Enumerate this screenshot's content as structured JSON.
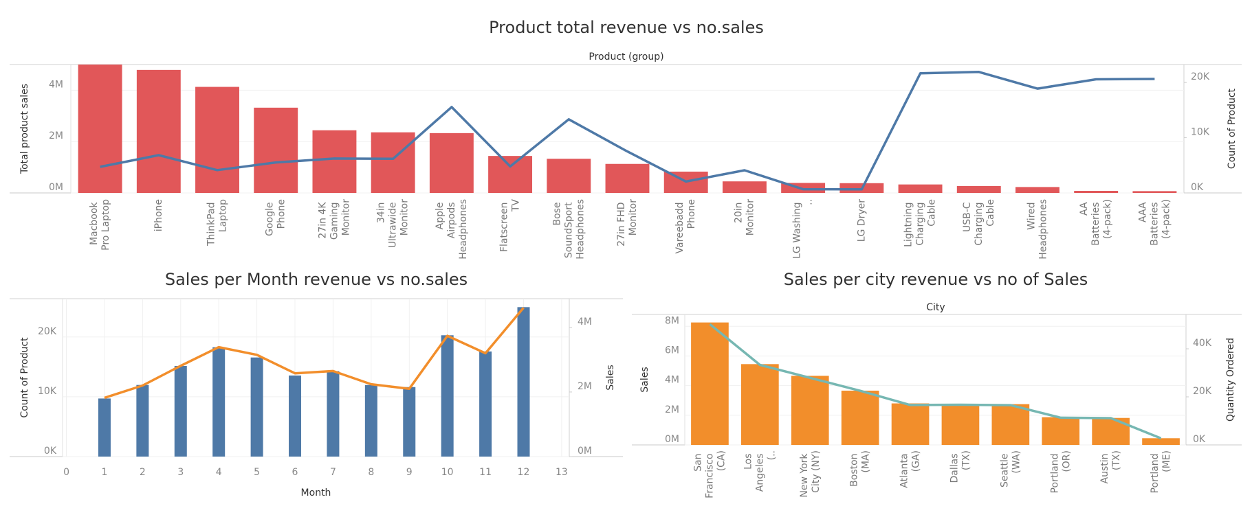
{
  "chart_data": [
    {
      "type": "bar",
      "title": "Product total revenue vs no.sales",
      "header": "Product (group)",
      "y_label": "Total product sales",
      "y2_label": "Count of Product",
      "grid": true,
      "categories": [
        "Macbook Pro Laptop",
        "iPhone",
        "ThinkPad Laptop",
        "Google Phone",
        "27in 4K Gaming Monitor",
        "34in Ultrawide Monitor",
        "Apple Airpods Headphones",
        "Flatscreen TV",
        "Bose SoundSport Headphones",
        "27in FHD Monitor",
        "Vareebadd Phone",
        "20in Monitor",
        "LG Washing ..",
        "LG Dryer",
        "Lightning Charging Cable",
        "USB-C Charging Cable",
        "Wired Headphones",
        "AA Batteries (4-pack)",
        "AAA Batteries (4-pack)"
      ],
      "ylim": [
        0,
        5000000
      ],
      "yticks": [
        {
          "value": 0,
          "label": "0M"
        },
        {
          "value": 2000000,
          "label": "2M"
        },
        {
          "value": 4000000,
          "label": "4M"
        }
      ],
      "y2lim": [
        0,
        23250
      ],
      "y2ticks": [
        {
          "value": 0,
          "label": "0K"
        },
        {
          "value": 10000,
          "label": "10K"
        },
        {
          "value": 20000,
          "label": "20K"
        }
      ],
      "series": [
        {
          "name": "Total product sales",
          "type": "bar",
          "color": "#e15759",
          "values": [
            5000000,
            4790000,
            4130000,
            3320000,
            2440000,
            2360000,
            2330000,
            1440000,
            1330000,
            1130000,
            830000,
            450000,
            390000,
            380000,
            330000,
            270000,
            230000,
            80000,
            70000
          ]
        },
        {
          "name": "Count of Product",
          "type": "line",
          "axis": "y2",
          "color": "#4e79a7",
          "values": [
            4724,
            6842,
            4128,
            5525,
            6230,
            6181,
            15549,
            4800,
            13325,
            7507,
            2065,
            4101,
            666,
            646,
            21658,
            21903,
            18882,
            20577,
            20641
          ]
        }
      ]
    },
    {
      "type": "bar",
      "title": "Sales per Month revenue vs no.sales",
      "x_label": "Month",
      "y_label": "Count of Product",
      "y2_label": "Sales",
      "grid": true,
      "x": [
        1,
        2,
        3,
        4,
        5,
        6,
        7,
        8,
        9,
        10,
        11,
        12
      ],
      "xlim": [
        -0.1,
        13.2
      ],
      "xticks": [
        0,
        1,
        2,
        3,
        4,
        5,
        6,
        7,
        8,
        9,
        10,
        11,
        12,
        13
      ],
      "ylim": [
        0,
        26400
      ],
      "yticks": [
        {
          "value": 0,
          "label": "0K"
        },
        {
          "value": 10000,
          "label": "10K"
        },
        {
          "value": 20000,
          "label": "20K"
        }
      ],
      "y2lim": [
        0,
        4890000
      ],
      "y2ticks": [
        {
          "value": 0,
          "label": "0M"
        },
        {
          "value": 2000000,
          "label": "2M"
        },
        {
          "value": 4000000,
          "label": "4M"
        }
      ],
      "series": [
        {
          "name": "Count of Product",
          "type": "bar",
          "color": "#4e79a7",
          "values": [
            9709,
            11975,
            15153,
            18279,
            16566,
            13554,
            14293,
            11961,
            11621,
            20282,
            17573,
            24984
          ]
        },
        {
          "name": "Sales",
          "type": "line",
          "axis": "y2",
          "color": "#f28e2b",
          "values": [
            1820000,
            2200000,
            2810000,
            3390000,
            3150000,
            2580000,
            2650000,
            2240000,
            2100000,
            3740000,
            3200000,
            4610000
          ]
        }
      ]
    },
    {
      "type": "bar",
      "title": "Sales per city revenue vs no of Sales",
      "header": "City",
      "y_label": "Sales",
      "y2_label": "Quantity Ordered",
      "grid": true,
      "categories": [
        "San Francisco (CA)",
        "Los Angeles (..",
        "New York City (NY)",
        "Boston (MA)",
        "Atlanta (GA)",
        "Dallas (TX)",
        "Seattle (WA)",
        "Portland (OR)",
        "Austin (TX)",
        "Portland (ME)"
      ],
      "ylim": [
        0,
        8800000
      ],
      "yticks": [
        {
          "value": 0,
          "label": "0M"
        },
        {
          "value": 2000000,
          "label": "2M"
        },
        {
          "value": 4000000,
          "label": "4M"
        },
        {
          "value": 6000000,
          "label": "6M"
        },
        {
          "value": 8000000,
          "label": "8M"
        }
      ],
      "y2lim": [
        0,
        54300
      ],
      "y2ticks": [
        {
          "value": 0,
          "label": "0K"
        },
        {
          "value": 20000,
          "label": "20K"
        },
        {
          "value": 40000,
          "label": "40K"
        }
      ],
      "series": [
        {
          "name": "Sales",
          "type": "bar",
          "color": "#f28e2b",
          "values": [
            8260000,
            5450000,
            4660000,
            3660000,
            2800000,
            2770000,
            2750000,
            1870000,
            1820000,
            450000
          ]
        },
        {
          "name": "Quantity Ordered",
          "type": "line",
          "axis": "y2",
          "color": "#76b7b2",
          "values": [
            50239,
            33289,
            27932,
            22528,
            16602,
            16730,
            16553,
            11303,
            11153,
            2750
          ]
        }
      ]
    }
  ]
}
